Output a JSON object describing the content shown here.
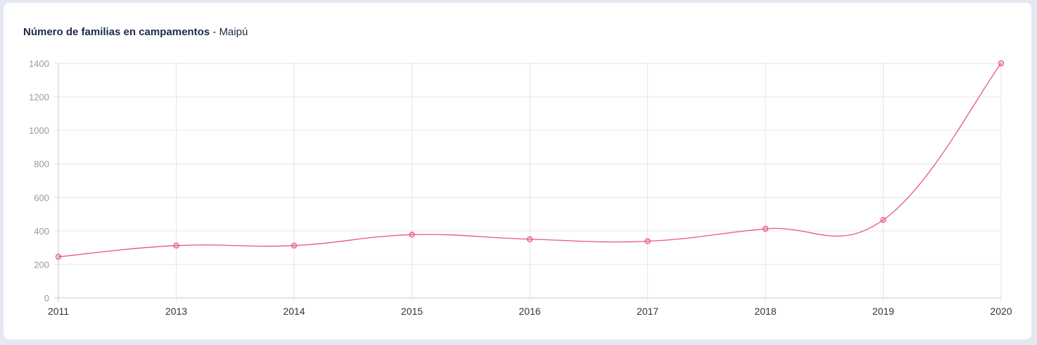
{
  "header": {
    "title": "Número de familias en campamentos",
    "separator": " - ",
    "subtitle": "Maipú"
  },
  "chart_data": {
    "type": "line",
    "categories": [
      "2011",
      "2013",
      "2014",
      "2015",
      "2016",
      "2017",
      "2018",
      "2019",
      "2020"
    ],
    "series": [
      {
        "values": [
          245,
          312,
          312,
          377,
          350,
          338,
          412,
          465,
          1400
        ],
        "color": "#e8567a"
      }
    ],
    "ylim": [
      0,
      1400
    ],
    "yticks": [
      0,
      200,
      400,
      600,
      800,
      1000,
      1200,
      1400
    ],
    "grid": true,
    "smooth": true
  }
}
